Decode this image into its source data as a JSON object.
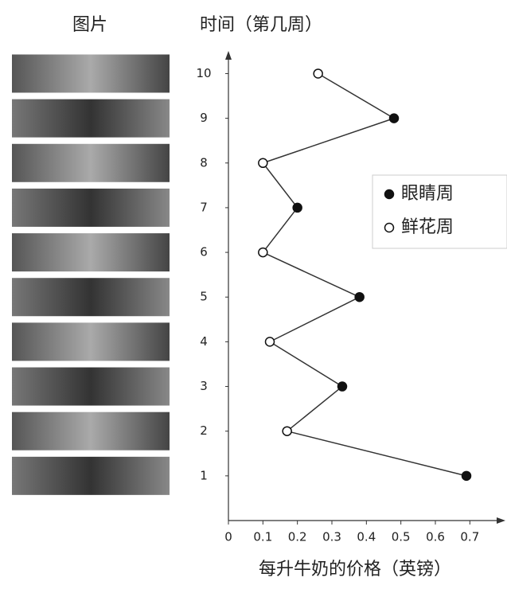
{
  "chart_data": {
    "type": "line",
    "image_header": "图片",
    "y_label": "时间（第几周）",
    "x_label": "每升牛奶的价格（英镑）",
    "y": [
      1,
      2,
      3,
      4,
      5,
      6,
      7,
      8,
      9,
      10
    ],
    "ylim": [
      0,
      10.4
    ],
    "xlim": [
      0,
      0.78
    ],
    "xticks": [
      0,
      0.1,
      0.2,
      0.3,
      0.4,
      0.5,
      0.6,
      0.7
    ],
    "series": [
      {
        "name": "眼睛周",
        "color": "#111111",
        "fill": "#111111",
        "values": [
          0.69,
          null,
          0.33,
          null,
          0.38,
          null,
          0.2,
          null,
          0.48,
          null
        ]
      },
      {
        "name": "鲜花周",
        "color": "#111111",
        "fill": "#ffffff",
        "values": [
          null,
          0.17,
          null,
          0.12,
          null,
          0.1,
          null,
          0.1,
          null,
          0.26
        ]
      }
    ],
    "legend": "right"
  }
}
